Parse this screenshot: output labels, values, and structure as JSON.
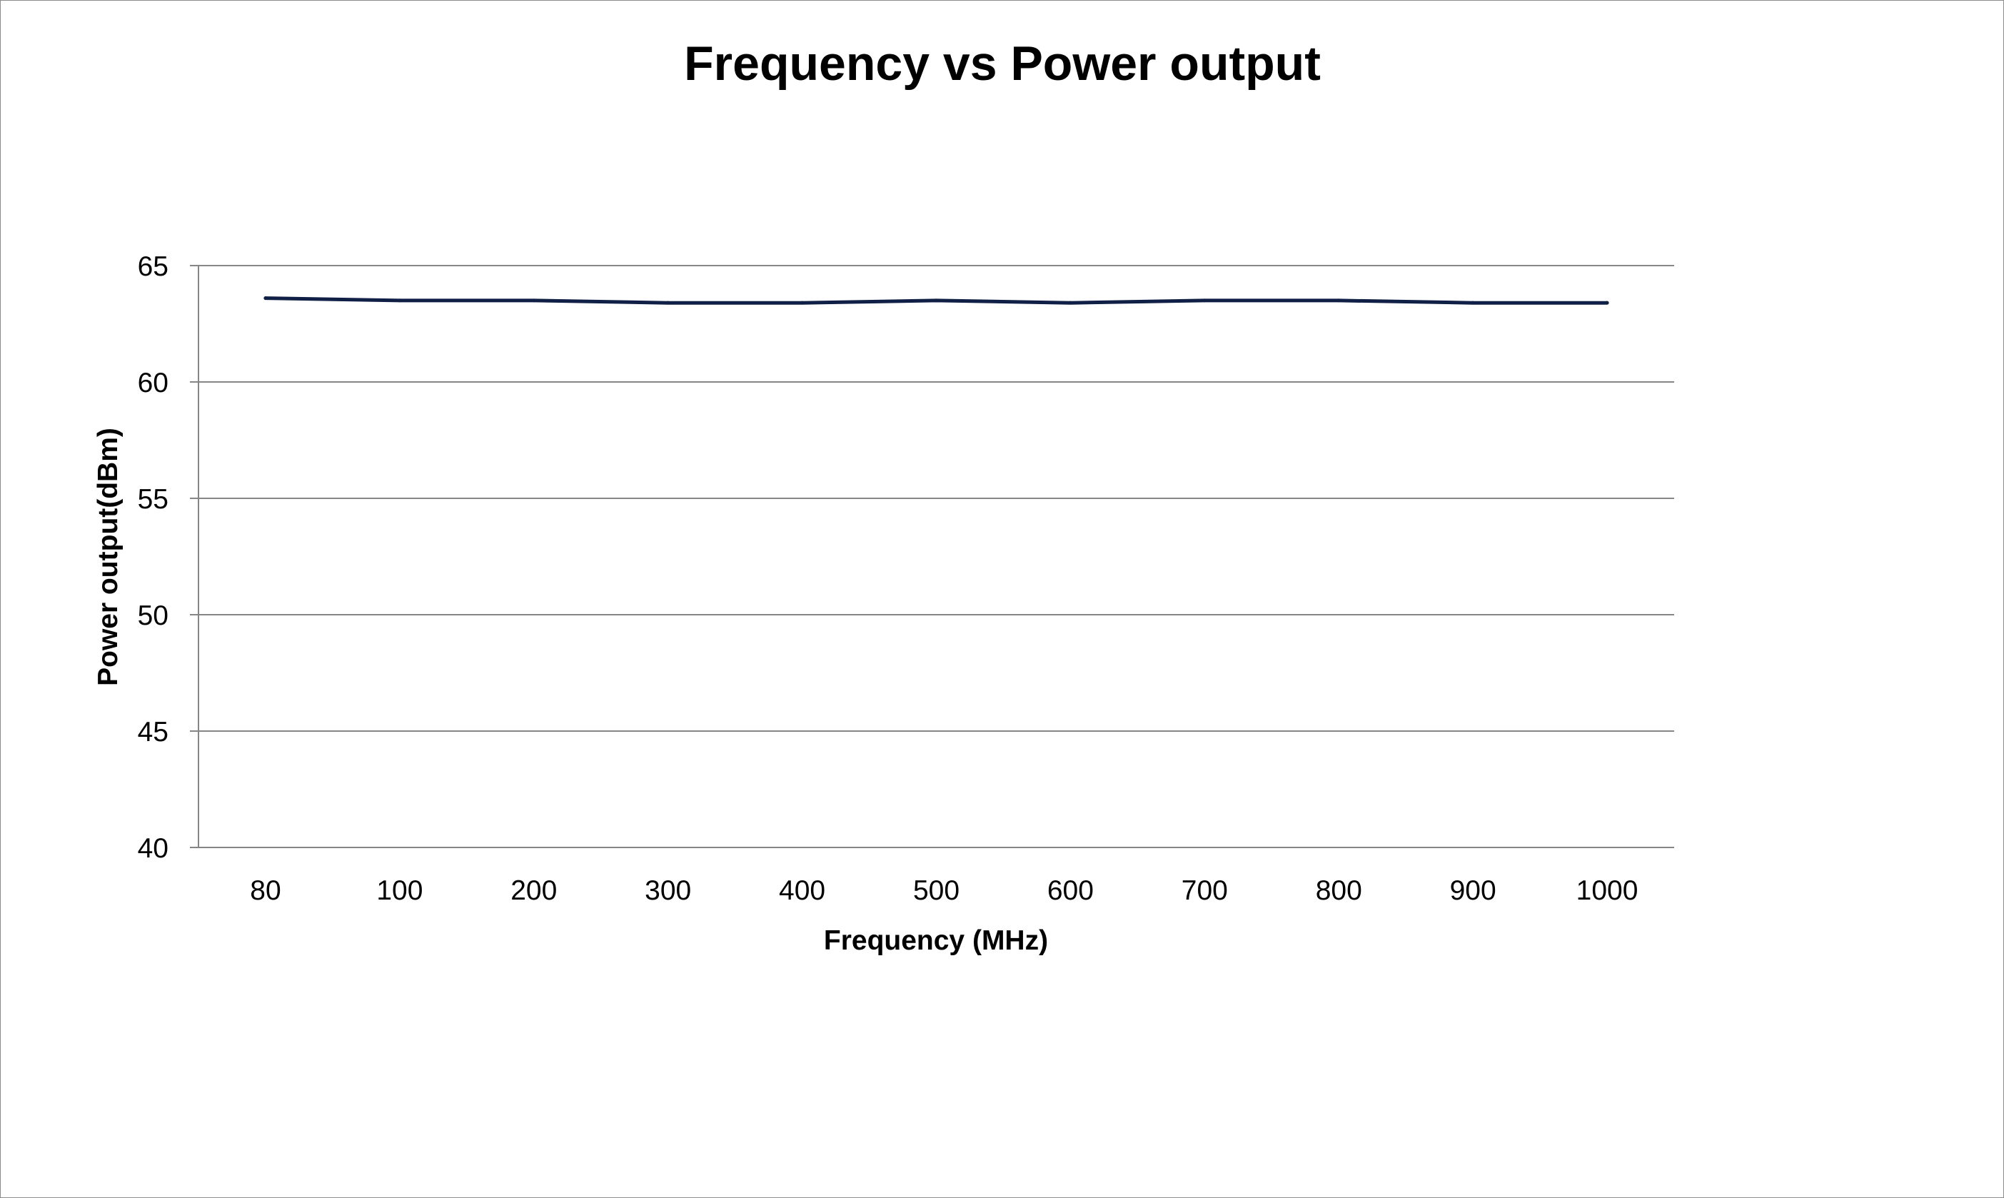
{
  "chart_data": {
    "type": "line",
    "title": "Frequency vs Power output",
    "xlabel": "Frequency (MHz)",
    "ylabel": "Power output(dBm)",
    "categories": [
      "80",
      "100",
      "200",
      "300",
      "400",
      "500",
      "600",
      "700",
      "800",
      "900",
      "1000"
    ],
    "series": [
      {
        "values": [
          63.6,
          63.5,
          63.5,
          63.4,
          63.4,
          63.5,
          63.4,
          63.5,
          63.5,
          63.4,
          63.4
        ]
      }
    ],
    "yticks": [
      "40",
      "45",
      "50",
      "55",
      "60",
      "65"
    ],
    "ylim": [
      40,
      65
    ],
    "grid": true,
    "legend": "none",
    "colors": {
      "line": "#0f1f45",
      "grid": "#868686",
      "axis": "#868686"
    }
  }
}
